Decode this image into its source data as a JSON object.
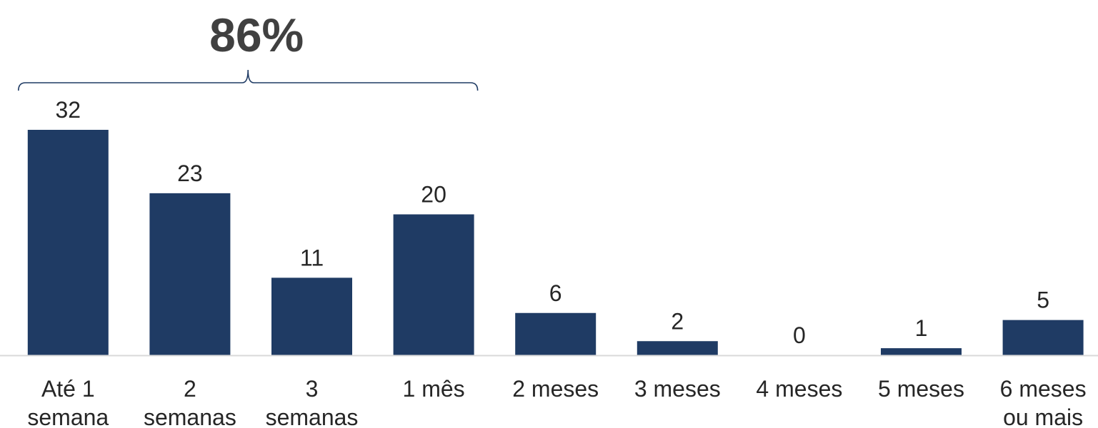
{
  "chart_data": {
    "type": "bar",
    "categories": [
      [
        "Até 1",
        "semana"
      ],
      [
        "2",
        "semanas"
      ],
      [
        "3",
        "semanas"
      ],
      [
        "1 mês"
      ],
      [
        "2 meses"
      ],
      [
        "3 meses"
      ],
      [
        "4 meses"
      ],
      [
        "5 meses"
      ],
      [
        "6 meses",
        "ou mais"
      ]
    ],
    "values": [
      32,
      23,
      11,
      20,
      6,
      2,
      0,
      1,
      5
    ],
    "title": "",
    "xlabel": "",
    "ylabel": "",
    "ylim": [
      0,
      32
    ],
    "grid": false,
    "legend": "none",
    "bar_color": "#1f3b64",
    "axis_color": "#d9d9d9",
    "text_color": "#262626",
    "annotation": {
      "text": "86%",
      "type": "brace",
      "first_category": 0,
      "last_category": 3,
      "color": "#1f3b64",
      "text_color": "#404040"
    }
  }
}
